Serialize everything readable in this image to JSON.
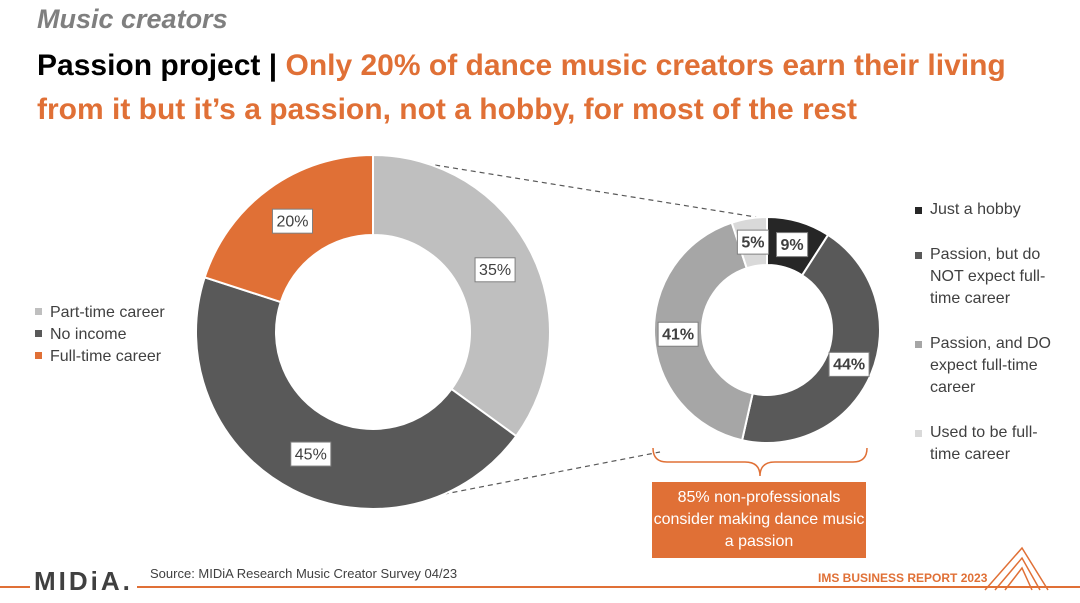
{
  "header": {
    "kicker": "Music creators",
    "title_lead": "Passion project |",
    "title_highlight": "Only 20% of dance music creators earn their living from it but it’s a passion, not a hobby, for most of the rest"
  },
  "chart_data": [
    {
      "type": "pie",
      "categories": [
        "Part-time career",
        "No income",
        "Full-time career"
      ],
      "values": [
        35,
        45,
        20
      ],
      "value_labels": [
        "35%",
        "45%",
        "20%"
      ],
      "colors": [
        "#bfbfbf",
        "#595959",
        "#e07036"
      ]
    },
    {
      "type": "pie",
      "categories": [
        "Just a hobby",
        "Passion, but do NOT expect full-time career",
        "Passion, and DO expect full-time career",
        "Used to be full-time career"
      ],
      "values": [
        9,
        44,
        41,
        5
      ],
      "value_labels": [
        "9%",
        "44%",
        "41%",
        "5%"
      ],
      "colors": [
        "#262626",
        "#595959",
        "#a6a6a6",
        "#d9d9d9"
      ]
    }
  ],
  "callout": "85% non-professionals consider making dance music a passion",
  "footer": {
    "logo": "MIDiA.",
    "source": "Source: MIDiA Research Music Creator Survey 04/23",
    "report": "IMS BUSINESS REPORT 2023"
  }
}
